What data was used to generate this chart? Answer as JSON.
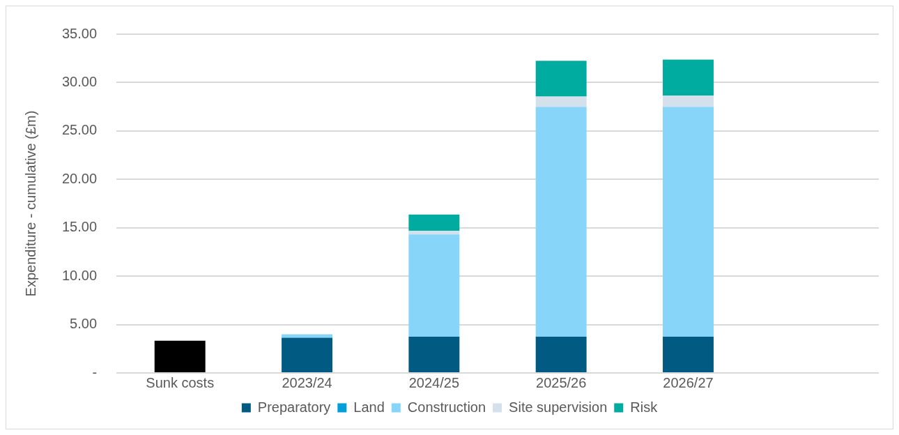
{
  "chart_data": {
    "type": "bar",
    "stacked": true,
    "ylabel": "Expenditure - cumulative (£m)",
    "categories": [
      "Sunk costs",
      "2023/24",
      "2024/25",
      "2025/26",
      "2026/27",
      null
    ],
    "series": [
      {
        "color": "#000000",
        "values": [
          3.33,
          null,
          null,
          null,
          null,
          null
        ]
      },
      {
        "name": "Preparatory",
        "color": "#005a82",
        "values": [
          null,
          3.63,
          3.75,
          3.75,
          3.75,
          null
        ]
      },
      {
        "name": "Land",
        "color": "#009fda",
        "values": [
          null,
          0,
          0,
          0,
          0,
          null
        ]
      },
      {
        "name": "Construction",
        "color": "#87d5f8",
        "values": [
          null,
          0.37,
          10.57,
          23.75,
          23.75,
          null
        ]
      },
      {
        "name": "Site supervision",
        "color": "#d4e0eb",
        "values": [
          null,
          0,
          0.35,
          1.05,
          1.15,
          null
        ]
      },
      {
        "name": "Risk",
        "color": "#00aba0",
        "values": [
          null,
          0,
          1.7,
          3.7,
          3.73,
          null
        ]
      }
    ],
    "ylim": [
      0,
      35
    ],
    "yticks": [
      {
        "value": 0,
        "label": "-"
      },
      {
        "value": 5,
        "label": "5.00"
      },
      {
        "value": 10,
        "label": "10.00"
      },
      {
        "value": 15,
        "label": "15.00"
      },
      {
        "value": 20,
        "label": "20.00"
      },
      {
        "value": 25,
        "label": "25.00"
      },
      {
        "value": 30,
        "label": "30.00"
      },
      {
        "value": 35,
        "label": "35.00"
      }
    ],
    "grid": "y",
    "legend": "bottom"
  }
}
